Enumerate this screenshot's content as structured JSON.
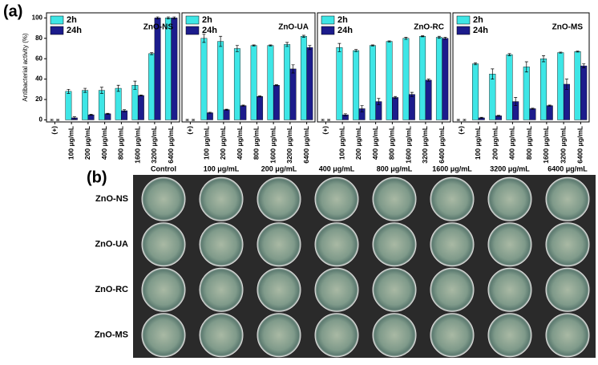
{
  "panel_labels": [
    "(a)",
    "(b)"
  ],
  "chart_data": [
    {
      "type": "bar",
      "annotation": "ZnO-NS",
      "y_label": "Antibacterial activity (%)",
      "categories": [
        "(+)",
        "100 μg/mL",
        "200 μg/mL",
        "400 μg/mL",
        "800 μg/mL",
        "1600 μg/mL",
        "3200 μg/mL",
        "6400 μg/mL"
      ],
      "series": [
        {
          "name": "2h",
          "color": "#3ee6e6",
          "values": [
            0,
            28,
            29,
            29,
            31,
            34,
            65,
            100
          ],
          "errors": [
            0.5,
            2,
            2,
            3,
            3,
            4,
            1,
            1
          ]
        },
        {
          "name": "24h",
          "color": "#1c1c8c",
          "values": [
            0,
            2,
            5,
            6,
            9,
            24,
            100,
            100
          ],
          "errors": [
            0.5,
            1,
            0.5,
            0.5,
            1,
            0.5,
            1,
            1
          ]
        }
      ],
      "ylim": [
        -2,
        105
      ],
      "yticks": [
        0,
        20,
        40,
        60,
        80,
        100
      ]
    },
    {
      "type": "bar",
      "annotation": "ZnO-UA",
      "categories": [
        "(+)",
        "100 μg/mL",
        "200 μg/mL",
        "400 μg/mL",
        "800 μg/mL",
        "1600 μg/mL",
        "3200 μg/mL",
        "6400 μg/mL"
      ],
      "series": [
        {
          "name": "2h",
          "color": "#3ee6e6",
          "values": [
            0,
            80,
            77,
            70,
            73,
            73,
            74,
            82
          ],
          "errors": [
            0.5,
            4,
            5,
            3,
            0.5,
            0.5,
            2,
            1
          ]
        },
        {
          "name": "24h",
          "color": "#1c1c8c",
          "values": [
            0,
            7,
            10,
            14,
            23,
            34,
            50,
            71
          ],
          "errors": [
            0.5,
            0.5,
            0.5,
            0.5,
            0.5,
            0.5,
            4,
            2
          ]
        }
      ],
      "ylim": [
        -2,
        105
      ]
    },
    {
      "type": "bar",
      "annotation": "ZnO-RC",
      "categories": [
        "(+)",
        "100 μg/mL",
        "200 μg/mL",
        "400 μg/mL",
        "800 μg/mL",
        "1600 μg/mL",
        "3200 μg/mL",
        "6400 μg/mL"
      ],
      "series": [
        {
          "name": "2h",
          "color": "#3ee6e6",
          "values": [
            0,
            71,
            68,
            73,
            77,
            80,
            82,
            81
          ],
          "errors": [
            0.5,
            4,
            1,
            0.5,
            0.5,
            1,
            0.5,
            1
          ]
        },
        {
          "name": "24h",
          "color": "#1c1c8c",
          "values": [
            0,
            5,
            11,
            18,
            22,
            25,
            39,
            80
          ],
          "errors": [
            0.5,
            1,
            3,
            3,
            1,
            2,
            1,
            1
          ]
        }
      ],
      "ylim": [
        -2,
        105
      ]
    },
    {
      "type": "bar",
      "annotation": "ZnO-MS",
      "categories": [
        "(+)",
        "100 μg/mL",
        "200 μg/mL",
        "400 μg/mL",
        "800 μg/mL",
        "1600 μg/mL",
        "3200 μg/mL",
        "6400 μg/mL"
      ],
      "series": [
        {
          "name": "2h",
          "color": "#3ee6e6",
          "values": [
            0,
            55,
            45,
            64,
            52,
            60,
            66,
            67
          ],
          "errors": [
            0.5,
            1,
            5,
            1,
            5,
            3,
            0.5,
            0.5
          ]
        },
        {
          "name": "24h",
          "color": "#1c1c8c",
          "values": [
            0,
            2,
            4,
            18,
            11,
            14,
            35,
            53
          ],
          "errors": [
            0.5,
            0.5,
            0.5,
            4,
            0.5,
            0.5,
            5,
            2
          ]
        }
      ],
      "ylim": [
        -2,
        105
      ]
    }
  ],
  "photo_grid": {
    "columns": [
      "Control",
      "100 μg/mL",
      "200 μg/mL",
      "400 μg/mL",
      "800 μg/mL",
      "1600 μg/mL",
      "3200 μg/mL",
      "6400 μg/mL"
    ],
    "rows": [
      "ZnO-NS",
      "ZnO-UA",
      "ZnO-RC",
      "ZnO-MS"
    ]
  }
}
